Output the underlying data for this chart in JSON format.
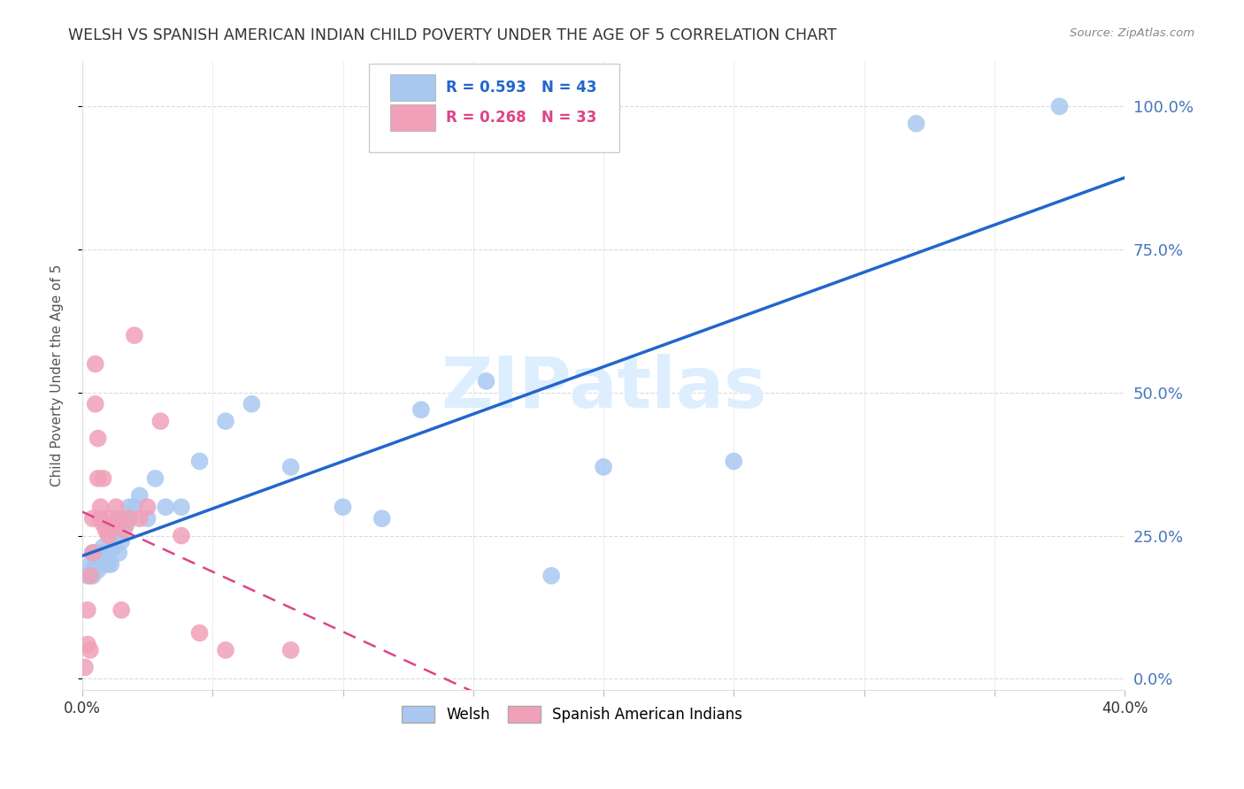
{
  "title": "WELSH VS SPANISH AMERICAN INDIAN CHILD POVERTY UNDER THE AGE OF 5 CORRELATION CHART",
  "source": "Source: ZipAtlas.com",
  "ylabel": "Child Poverty Under the Age of 5",
  "ytick_values": [
    0.0,
    0.25,
    0.5,
    0.75,
    1.0
  ],
  "xmin": 0.0,
  "xmax": 0.4,
  "ymin": -0.02,
  "ymax": 1.08,
  "welsh_R": 0.593,
  "welsh_N": 43,
  "spanish_R": 0.268,
  "spanish_N": 33,
  "welsh_color": "#a8c8f0",
  "spanish_color": "#f0a0b8",
  "welsh_line_color": "#2266cc",
  "spanish_line_color": "#dd4488",
  "watermark_color": "#ddeeff",
  "title_color": "#333333",
  "axis_label_color": "#555555",
  "right_tick_color": "#4477bb",
  "grid_color": "#cccccc",
  "welsh_scatter_x": [
    0.002,
    0.003,
    0.004,
    0.004,
    0.005,
    0.005,
    0.006,
    0.007,
    0.007,
    0.008,
    0.008,
    0.009,
    0.009,
    0.01,
    0.01,
    0.01,
    0.011,
    0.012,
    0.013,
    0.014,
    0.015,
    0.016,
    0.017,
    0.018,
    0.02,
    0.022,
    0.025,
    0.028,
    0.032,
    0.038,
    0.045,
    0.055,
    0.065,
    0.08,
    0.1,
    0.115,
    0.13,
    0.155,
    0.18,
    0.2,
    0.25,
    0.32,
    0.375
  ],
  "welsh_scatter_y": [
    0.18,
    0.2,
    0.22,
    0.18,
    0.2,
    0.22,
    0.19,
    0.22,
    0.2,
    0.21,
    0.23,
    0.2,
    0.22,
    0.2,
    0.22,
    0.21,
    0.2,
    0.23,
    0.25,
    0.22,
    0.24,
    0.28,
    0.27,
    0.3,
    0.3,
    0.32,
    0.28,
    0.35,
    0.3,
    0.3,
    0.38,
    0.45,
    0.48,
    0.37,
    0.3,
    0.28,
    0.47,
    0.52,
    0.18,
    0.37,
    0.38,
    0.97,
    1.0
  ],
  "spanish_scatter_x": [
    0.001,
    0.002,
    0.002,
    0.003,
    0.003,
    0.004,
    0.004,
    0.005,
    0.005,
    0.006,
    0.006,
    0.007,
    0.007,
    0.008,
    0.008,
    0.009,
    0.01,
    0.01,
    0.011,
    0.012,
    0.013,
    0.014,
    0.015,
    0.016,
    0.018,
    0.02,
    0.022,
    0.025,
    0.03,
    0.038,
    0.045,
    0.055,
    0.08
  ],
  "spanish_scatter_y": [
    0.02,
    0.06,
    0.12,
    0.18,
    0.05,
    0.22,
    0.28,
    0.55,
    0.48,
    0.42,
    0.35,
    0.3,
    0.28,
    0.27,
    0.35,
    0.26,
    0.28,
    0.25,
    0.26,
    0.27,
    0.3,
    0.28,
    0.12,
    0.26,
    0.28,
    0.6,
    0.28,
    0.3,
    0.45,
    0.25,
    0.08,
    0.05,
    0.05
  ]
}
